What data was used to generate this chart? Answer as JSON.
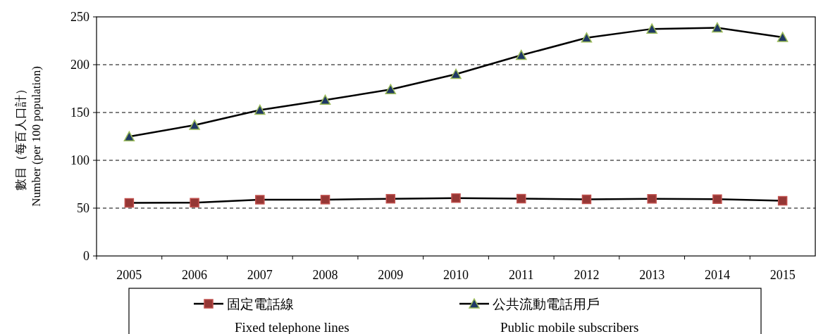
{
  "chart_data": {
    "type": "line",
    "ylabel": "數目（每百人口計）\nNumber (per 100 population)",
    "categories": [
      "2005",
      "2006",
      "2007",
      "2008",
      "2009",
      "2010",
      "2011",
      "2012",
      "2013",
      "2014",
      "2015"
    ],
    "series": [
      {
        "name": "固定電話線\nFixed telephone lines",
        "color": "#953735",
        "marker": "square",
        "values": [
          55.5,
          55.7,
          58.8,
          58.9,
          59.8,
          60.5,
          59.9,
          59.2,
          59.7,
          59.4,
          57.7
        ]
      },
      {
        "name": "公共流動電話用戶\nPublic mobile subscribers",
        "color": "#1f3864",
        "marker": "triangle",
        "values": [
          124.8,
          136.8,
          152.6,
          163.0,
          174.1,
          190.1,
          209.9,
          228.1,
          237.4,
          238.6,
          228.6
        ]
      }
    ],
    "ylim": [
      0,
      250
    ],
    "yticks": [
      0,
      50,
      100,
      150,
      200,
      250
    ],
    "grid": "y",
    "legend": "bottom"
  }
}
